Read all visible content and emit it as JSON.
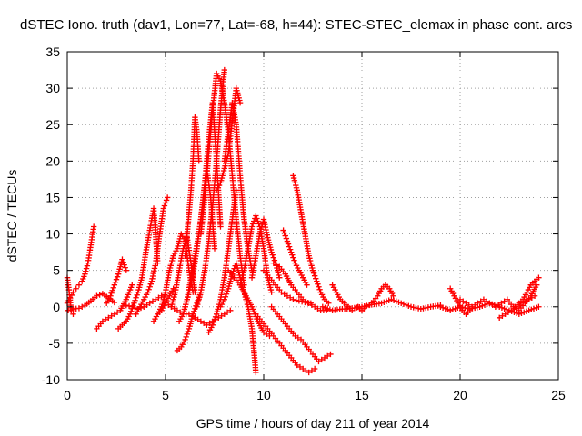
{
  "chart_data": {
    "type": "scatter",
    "title": "dSTEC Iono. truth (dav1, Lon=77, Lat=-68, h=44): STEC-STEC_elemax in phase cont. arcs",
    "xlabel": "GPS time / hours of day 211 of year 2014",
    "ylabel": "dSTEC  / TECUs",
    "xlim": [
      0,
      25
    ],
    "ylim": [
      -10,
      35
    ],
    "xticks": [
      0,
      5,
      10,
      15,
      20,
      25
    ],
    "yticks": [
      -10,
      -5,
      0,
      5,
      10,
      15,
      20,
      25,
      30,
      35
    ],
    "grid": true,
    "marker": "plus",
    "color": "#ff0000",
    "series": [
      {
        "x": [
          0.0,
          0.15,
          0.3,
          0.45,
          0.6,
          0.75,
          0.9,
          1.05,
          1.2,
          1.35
        ],
        "y": [
          0.5,
          1.2,
          2.0,
          2.5,
          3.0,
          3.5,
          4.5,
          6.0,
          8.5,
          11.0
        ]
      },
      {
        "x": [
          0.05,
          0.3,
          0.6,
          0.9,
          1.2,
          1.5,
          1.8,
          2.1,
          2.4
        ],
        "y": [
          -0.5,
          -0.3,
          -0.2,
          0.2,
          0.8,
          1.5,
          1.8,
          1.2,
          0.6
        ]
      },
      {
        "x": [
          0.0,
          0.1,
          0.2,
          0.3
        ],
        "y": [
          4.0,
          2.0,
          -0.5,
          -1.0
        ]
      },
      {
        "x": [
          1.5,
          1.8,
          2.1,
          2.4,
          2.7,
          3.0,
          3.3
        ],
        "y": [
          -3.0,
          -2.0,
          -1.5,
          -1.0,
          -0.5,
          1.0,
          3.0
        ]
      },
      {
        "x": [
          2.0,
          2.2,
          2.4,
          2.6,
          2.8,
          3.0
        ],
        "y": [
          0.5,
          1.5,
          3.0,
          4.5,
          6.5,
          5.0
        ]
      },
      {
        "x": [
          2.6,
          2.8,
          3.0,
          3.2,
          3.4,
          3.6,
          3.8,
          4.0,
          4.2,
          4.4,
          4.6
        ],
        "y": [
          -3.0,
          -2.5,
          -2.0,
          -1.0,
          0.5,
          2.0,
          4.0,
          7.5,
          10.5,
          13.5,
          6.0
        ]
      },
      {
        "x": [
          3.0,
          3.3,
          3.6,
          3.9,
          4.2,
          4.5,
          4.8
        ],
        "y": [
          0.2,
          0.0,
          -0.3,
          0.0,
          0.5,
          1.0,
          1.5
        ]
      },
      {
        "x": [
          3.5,
          3.7,
          3.9,
          4.1,
          4.3,
          4.5,
          4.7,
          4.9,
          5.1
        ],
        "y": [
          -1.0,
          0.0,
          1.0,
          2.0,
          3.5,
          6.0,
          10.0,
          13.5,
          15.0
        ]
      },
      {
        "x": [
          4.4,
          4.6,
          4.8,
          5.0,
          5.2,
          5.4
        ],
        "y": [
          -2.0,
          -1.0,
          -0.5,
          0.5,
          1.5,
          2.5
        ]
      },
      {
        "x": [
          4.6,
          4.8,
          5.0,
          5.2,
          5.4,
          5.6,
          5.8,
          6.0,
          6.2,
          6.4
        ],
        "y": [
          -1.0,
          0.0,
          2.0,
          5.0,
          7.0,
          8.0,
          10.0,
          9.0,
          5.0,
          2.0
        ]
      },
      {
        "x": [
          5.3,
          5.5,
          5.7,
          5.9,
          6.1,
          6.3,
          6.5
        ],
        "y": [
          0.0,
          2.0,
          5.0,
          8.0,
          9.5,
          6.0,
          2.0
        ]
      },
      {
        "x": [
          5.6,
          5.8,
          6.0,
          6.2,
          6.4,
          6.6,
          6.8
        ],
        "y": [
          -6.0,
          -5.5,
          -4.5,
          -3.0,
          -1.0,
          0.5,
          2.0
        ]
      },
      {
        "x": [
          5.0,
          5.3,
          5.6,
          5.9,
          6.2,
          6.5,
          6.8,
          7.1,
          7.4,
          7.7,
          8.0,
          8.3
        ],
        "y": [
          0.5,
          0.0,
          -0.5,
          -1.0,
          -1.0,
          -1.5,
          -2.0,
          -2.5,
          -2.0,
          -1.5,
          -1.0,
          -0.5
        ]
      },
      {
        "x": [
          5.7,
          5.9,
          6.1,
          6.3,
          6.5,
          6.7,
          6.9,
          7.1,
          7.3,
          7.5
        ],
        "y": [
          -2.0,
          -1.0,
          1.0,
          4.0,
          7.0,
          10.0,
          14.0,
          19.0,
          15.0,
          8.0
        ]
      },
      {
        "x": [
          6.0,
          6.2,
          6.4,
          6.6,
          6.8,
          7.0,
          7.2,
          7.4,
          7.6,
          7.8
        ],
        "y": [
          0.0,
          2.0,
          4.5,
          8.0,
          12.0,
          17.0,
          23.0,
          28.0,
          20.0,
          11.0
        ]
      },
      {
        "x": [
          6.0,
          6.1,
          6.2,
          6.3,
          6.4,
          6.5,
          6.6,
          6.7
        ],
        "y": [
          7.0,
          10.0,
          13.0,
          16.0,
          20.0,
          26.0,
          24.0,
          20.0
        ]
      },
      {
        "x": [
          6.6,
          6.8,
          7.0,
          7.2,
          7.4,
          7.6,
          7.8,
          8.0
        ],
        "y": [
          0.0,
          2.0,
          5.0,
          9.0,
          14.0,
          20.0,
          27.0,
          32.5
        ]
      },
      {
        "x": [
          6.8,
          7.0,
          7.2,
          7.4,
          7.6,
          7.8,
          8.0,
          8.2,
          8.4,
          8.6,
          8.8,
          9.0
        ],
        "y": [
          10.0,
          15.0,
          21.0,
          27.0,
          32.0,
          31.0,
          28.0,
          24.0,
          18.0,
          12.0,
          7.0,
          3.0
        ]
      },
      {
        "x": [
          7.2,
          7.4,
          7.6,
          7.8,
          8.0,
          8.2,
          8.4,
          8.6
        ],
        "y": [
          -3.5,
          -2.5,
          -1.0,
          1.0,
          4.0,
          8.0,
          12.0,
          16.0
        ]
      },
      {
        "x": [
          7.6,
          7.8,
          8.0,
          8.2,
          8.4,
          8.6,
          8.8
        ],
        "y": [
          16.0,
          17.0,
          19.0,
          21.0,
          25.5,
          30.0,
          28.0
        ]
      },
      {
        "x": [
          8.0,
          8.2,
          8.4,
          8.6,
          8.8,
          9.0,
          9.2,
          9.4
        ],
        "y": [
          20.0,
          24.0,
          28.0,
          25.0,
          18.0,
          12.0,
          8.0,
          5.0
        ]
      },
      {
        "x": [
          7.8,
          8.0,
          8.2,
          8.4,
          8.6,
          8.8,
          9.0,
          9.2,
          9.4,
          9.6
        ],
        "y": [
          0.0,
          1.0,
          2.5,
          4.5,
          6.0,
          4.0,
          2.0,
          0.0,
          -3.0,
          -9.0
        ]
      },
      {
        "x": [
          8.2,
          8.5,
          8.8,
          9.1,
          9.4,
          9.7,
          10.0,
          10.3
        ],
        "y": [
          5.0,
          4.0,
          3.0,
          1.5,
          0.0,
          -2.0,
          -3.5,
          -4.0
        ]
      },
      {
        "x": [
          8.8,
          9.0,
          9.2,
          9.4,
          9.6,
          9.8,
          10.0,
          10.2,
          10.4
        ],
        "y": [
          3.0,
          5.0,
          8.0,
          11.0,
          12.5,
          11.0,
          8.0,
          4.0,
          2.0
        ]
      },
      {
        "x": [
          9.4,
          9.6,
          9.8,
          10.0,
          10.2,
          10.4,
          10.6,
          10.8
        ],
        "y": [
          4.0,
          7.0,
          10.0,
          12.0,
          9.5,
          7.5,
          6.0,
          4.0
        ]
      },
      {
        "x": [
          9.6,
          9.9,
          10.2,
          10.5,
          10.8,
          11.1,
          11.4,
          11.7,
          12.0,
          12.3,
          12.6
        ],
        "y": [
          -1.0,
          -2.0,
          -3.0,
          -4.0,
          -5.0,
          -6.0,
          -7.0,
          -8.0,
          -8.5,
          -9.0,
          -8.5
        ]
      },
      {
        "x": [
          10.4,
          10.7,
          11.0,
          11.3,
          11.6,
          11.9,
          12.2,
          12.5,
          12.8,
          13.1,
          13.4
        ],
        "y": [
          0.0,
          -1.0,
          -2.0,
          -3.0,
          -4.0,
          -4.5,
          -5.5,
          -6.5,
          -7.5,
          -7.0,
          -6.5
        ]
      },
      {
        "x": [
          10.0,
          10.3,
          10.6,
          10.9,
          11.2,
          11.5,
          11.8,
          12.1,
          12.4
        ],
        "y": [
          5.0,
          4.0,
          3.0,
          2.0,
          1.5,
          1.0,
          0.8,
          0.6,
          0.5
        ]
      },
      {
        "x": [
          10.5,
          10.8,
          11.1,
          11.4,
          11.7,
          12.0,
          12.3,
          12.6,
          12.9,
          13.2
        ],
        "y": [
          6.0,
          5.5,
          4.5,
          3.0,
          2.0,
          1.0,
          0.5,
          0.0,
          -0.5,
          -0.5
        ]
      },
      {
        "x": [
          11.5,
          11.7,
          11.9,
          12.1,
          12.3,
          12.5,
          12.7,
          12.9,
          13.1,
          13.3
        ],
        "y": [
          18.0,
          16.0,
          13.0,
          10.0,
          7.0,
          5.0,
          3.5,
          2.0,
          1.0,
          0.5
        ]
      },
      {
        "x": [
          11.0,
          11.2,
          11.4,
          11.6,
          11.8,
          12.0,
          12.2
        ],
        "y": [
          10.5,
          9.0,
          7.5,
          6.0,
          5.0,
          4.0,
          3.0
        ]
      },
      {
        "x": [
          13.0,
          13.5,
          14.0,
          14.5,
          15.0,
          15.5,
          16.0,
          16.5,
          17.0,
          17.5,
          18.0,
          18.5,
          19.0
        ],
        "y": [
          0.0,
          -0.5,
          -0.3,
          -0.2,
          0.0,
          0.3,
          0.5,
          1.0,
          0.5,
          0.0,
          -0.3,
          0.0,
          0.2
        ]
      },
      {
        "x": [
          13.5,
          13.7,
          13.9,
          14.1,
          14.3,
          14.5
        ],
        "y": [
          3.0,
          2.0,
          1.0,
          0.5,
          0.0,
          -0.5
        ]
      },
      {
        "x": [
          14.8,
          15.0,
          15.2,
          15.4,
          15.6,
          15.8,
          16.0,
          16.2,
          16.4,
          16.6
        ],
        "y": [
          0.0,
          -0.5,
          0.0,
          0.3,
          0.8,
          1.5,
          2.5,
          3.0,
          2.5,
          1.5
        ]
      },
      {
        "x": [
          19.0,
          19.5,
          20.0,
          20.5,
          21.0,
          21.5,
          22.0,
          22.5,
          23.0,
          23.5,
          24.0
        ],
        "y": [
          0.0,
          -0.5,
          0.0,
          -0.3,
          0.0,
          0.5,
          0.0,
          -0.5,
          -1.0,
          -0.5,
          0.0
        ]
      },
      {
        "x": [
          19.5,
          19.7,
          19.9,
          20.1,
          20.3,
          20.5
        ],
        "y": [
          2.5,
          1.5,
          0.5,
          -0.5,
          -1.0,
          -0.5
        ]
      },
      {
        "x": [
          20.0,
          20.3,
          20.6,
          20.9,
          21.2,
          21.5,
          21.8,
          22.1,
          22.4,
          22.7,
          23.0,
          23.3,
          23.6,
          23.9
        ],
        "y": [
          1.0,
          0.5,
          0.0,
          0.5,
          1.0,
          0.5,
          0.0,
          0.5,
          1.0,
          0.0,
          -0.5,
          0.5,
          1.5,
          3.0
        ]
      },
      {
        "x": [
          22.8,
          23.0,
          23.2,
          23.4,
          23.6,
          23.8,
          24.0
        ],
        "y": [
          0.0,
          0.5,
          1.0,
          2.0,
          3.0,
          3.5,
          4.0
        ]
      },
      {
        "x": [
          22.0,
          22.3,
          22.6,
          22.9,
          23.2,
          23.5,
          23.8
        ],
        "y": [
          -1.5,
          -1.0,
          -0.5,
          0.0,
          0.5,
          1.0,
          1.5
        ]
      }
    ]
  }
}
